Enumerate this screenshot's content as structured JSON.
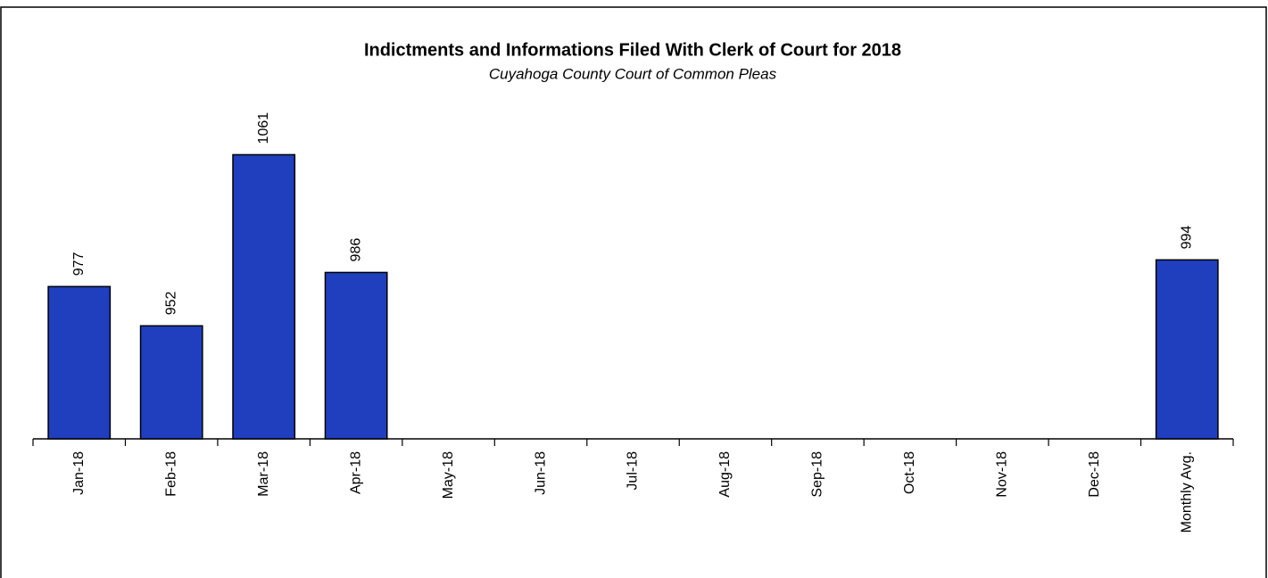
{
  "chart_data": {
    "type": "bar",
    "title": "Indictments and Informations Filed With Clerk of Court for 2018",
    "subtitle": "Cuyahoga County Court of Common Pleas",
    "categories": [
      "Jan-18",
      "Feb-18",
      "Mar-18",
      "Apr-18",
      "May-18",
      "Jun-18",
      "Jul-18",
      "Aug-18",
      "Sep-18",
      "Oct-18",
      "Nov-18",
      "Dec-18",
      "Monthly Avg."
    ],
    "values": [
      977,
      952,
      1061,
      986,
      null,
      null,
      null,
      null,
      null,
      null,
      null,
      null,
      994
    ],
    "color": "#1f3fbf",
    "ylim": [
      880,
      1080
    ]
  }
}
